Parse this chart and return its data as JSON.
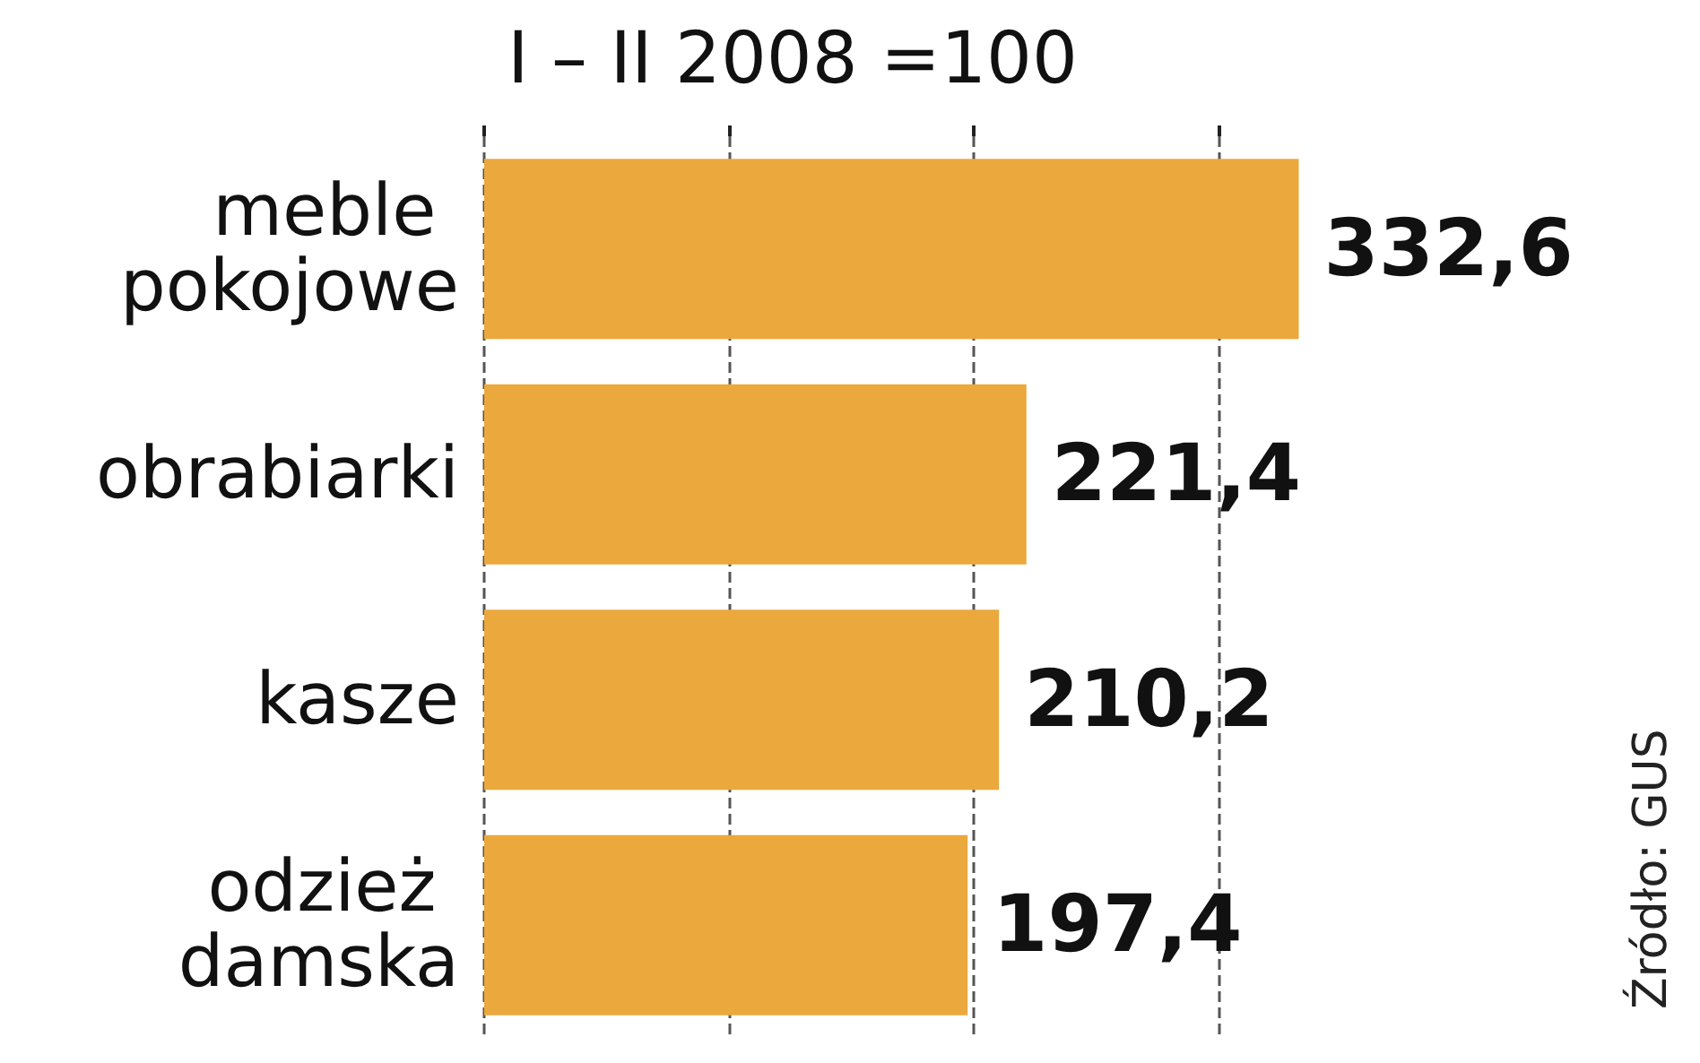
{
  "chart_data": {
    "type": "bar",
    "orientation": "horizontal",
    "title": "I – II 2008 =100",
    "categories": [
      "meble pokojowe",
      "obrabiarki",
      "kasze",
      "odzież damska"
    ],
    "values": [
      332.6,
      221.4,
      210.2,
      197.4
    ],
    "value_labels": [
      "332,6",
      "221,4",
      "210,2",
      "197,4"
    ],
    "color": "#eba83c",
    "xticks": [
      {
        "value": 0,
        "label": null
      },
      {
        "value": 100,
        "label": null
      },
      {
        "value": 200,
        "label": null
      },
      {
        "value": 300,
        "label": null
      }
    ],
    "grid": "x",
    "annotations": [
      "Źródło: GUS"
    ]
  }
}
